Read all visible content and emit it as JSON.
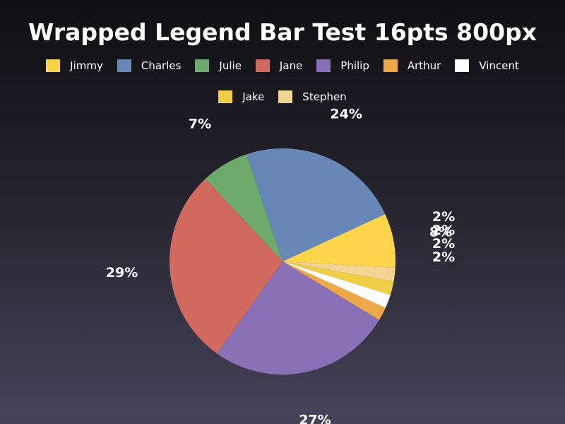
{
  "chart_data": {
    "type": "pie",
    "title": "Wrapped Legend Bar Test 16pts 800px",
    "legend_position": "top",
    "slices": [
      {
        "label": "Jimmy",
        "value": 8,
        "display": "8%",
        "color": "#fdd54c"
      },
      {
        "label": "Charles",
        "value": 24,
        "display": "24%",
        "color": "#6787b7"
      },
      {
        "label": "Julie",
        "value": 7,
        "display": "7%",
        "color": "#6faa6d"
      },
      {
        "label": "Jane",
        "value": 29,
        "display": "29%",
        "color": "#d2695f"
      },
      {
        "label": "Philip",
        "value": 27,
        "display": "27%",
        "color": "#8a70b4"
      },
      {
        "label": "Arthur",
        "value": 2,
        "display": "2%",
        "color": "#eea84a"
      },
      {
        "label": "Vincent",
        "value": 2,
        "display": "2%",
        "color": "#ffffff"
      },
      {
        "label": "Jake",
        "value": 2,
        "display": "2%",
        "color": "#f0cf46"
      },
      {
        "label": "Stephen",
        "value": 2,
        "display": "2%",
        "color": "#f3d593"
      }
    ]
  }
}
